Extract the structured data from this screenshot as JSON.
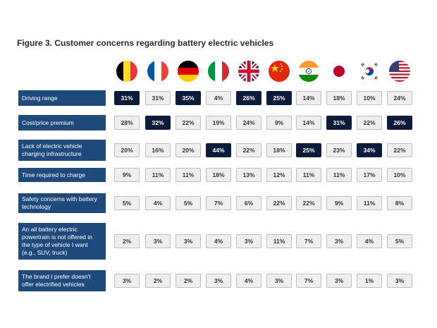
{
  "title": "Figure 3. Customer concerns regarding battery electric vehicles",
  "flags": [
    "belgium-flag-icon",
    "france-flag-icon",
    "germany-flag-icon",
    "italy-flag-icon",
    "uk-flag-icon",
    "china-flag-icon",
    "india-flag-icon",
    "japan-flag-icon",
    "south-korea-flag-icon",
    "usa-flag-icon"
  ],
  "colors": {
    "label_bg": "#1e4a7c",
    "highlight": "#0d1b3a",
    "cell_bg": "#efefef"
  },
  "chart_data": {
    "type": "table",
    "title": "Figure 3. Customer concerns regarding battery electric vehicles",
    "columns": [
      "Belgium",
      "France",
      "Germany",
      "Italy",
      "United Kingdom",
      "China",
      "India",
      "Japan",
      "South Korea",
      "United States"
    ],
    "rows": [
      {
        "label": "Driving range",
        "values": [
          "31%",
          "31%",
          "35%",
          "4%",
          "26%",
          "25%",
          "14%",
          "18%",
          "10%",
          "24%"
        ],
        "highlight": [
          0,
          2,
          4,
          5
        ]
      },
      {
        "label": "Cost/price premium",
        "values": [
          "28%",
          "32%",
          "22%",
          "19%",
          "24%",
          "9%",
          "14%",
          "31%",
          "22%",
          "26%"
        ],
        "highlight": [
          1,
          7,
          9
        ]
      },
      {
        "label": "Lack of electric vehicle charging infrastructure",
        "values": [
          "20%",
          "16%",
          "20%",
          "44%",
          "22%",
          "18%",
          "25%",
          "23%",
          "34%",
          "22%"
        ],
        "highlight": [
          3,
          6,
          8
        ]
      },
      {
        "label": "Time required to charge",
        "values": [
          "9%",
          "11%",
          "11%",
          "18%",
          "13%",
          "12%",
          "11%",
          "11%",
          "17%",
          "10%"
        ],
        "highlight": []
      },
      {
        "label": "Safety concerns with battery technology",
        "values": [
          "5%",
          "4%",
          "5%",
          "7%",
          "6%",
          "22%",
          "22%",
          "9%",
          "11%",
          "8%"
        ],
        "highlight": []
      },
      {
        "label": "An all battery electric powertrain is not offered in the type of vehicle I want (e.g., SUV, truck)",
        "values": [
          "2%",
          "3%",
          "3%",
          "4%",
          "3%",
          "11%",
          "7%",
          "3%",
          "4%",
          "5%"
        ],
        "highlight": []
      },
      {
        "label": "The brand I prefer doesn't offer electrified vehicles",
        "values": [
          "3%",
          "2%",
          "2%",
          "3%",
          "4%",
          "3%",
          "7%",
          "3%",
          "1%",
          "3%"
        ],
        "highlight": []
      }
    ]
  }
}
